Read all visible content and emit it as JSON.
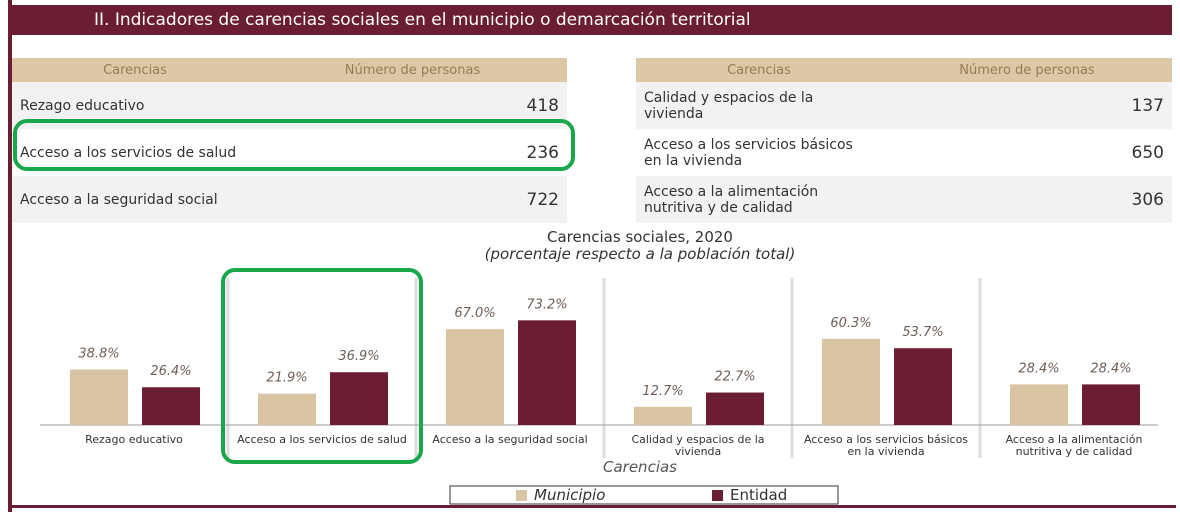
{
  "header": {
    "title": "II. Indicadores de carencias sociales en el municipio o demarcación territorial"
  },
  "tables": [
    {
      "columns": [
        "Carencias",
        "Número de personas"
      ],
      "rows": [
        [
          "Rezago educativo",
          418
        ],
        [
          "Acceso a los servicios de salud",
          236
        ],
        [
          "Acceso a la seguridad social",
          722
        ]
      ]
    },
    {
      "columns": [
        "Carencias",
        "Número de personas"
      ],
      "rows": [
        [
          "Calidad y espacios de la vivienda",
          137
        ],
        [
          "Acceso a los servicios básicos en la vivienda",
          650
        ],
        [
          "Acceso a la alimentación nutritiva y de calidad",
          306
        ]
      ]
    }
  ],
  "chart_data": {
    "type": "bar",
    "title": "Carencias sociales, 2020",
    "subtitle": "(porcentaje respecto a la población total)",
    "xlabel": "Carencias",
    "categories": [
      "Rezago educativo",
      "Acceso a los servicios de salud",
      "Acceso a la seguridad social",
      "Calidad y espacios de la vivienda",
      "Acceso a los servicios básicos en la vivienda",
      "Acceso a la alimentación nutritiva y de calidad"
    ],
    "series": [
      {
        "name": "Municipio",
        "color": "#d9c4a3",
        "values": [
          38.8,
          21.9,
          67.0,
          12.7,
          60.3,
          28.4
        ],
        "value_labels": [
          "38.8%",
          "21.9%",
          "67.0%",
          "12.7%",
          "60.3%",
          "28.4%"
        ]
      },
      {
        "name": "Entidad",
        "color": "#6b1d33",
        "values": [
          26.4,
          36.9,
          73.2,
          22.7,
          53.7,
          28.4
        ],
        "value_labels": [
          "26.4%",
          "36.9%",
          "73.2%",
          "22.7%",
          "53.7%",
          "28.4%"
        ]
      }
    ],
    "ylim": [
      0,
      100
    ]
  }
}
